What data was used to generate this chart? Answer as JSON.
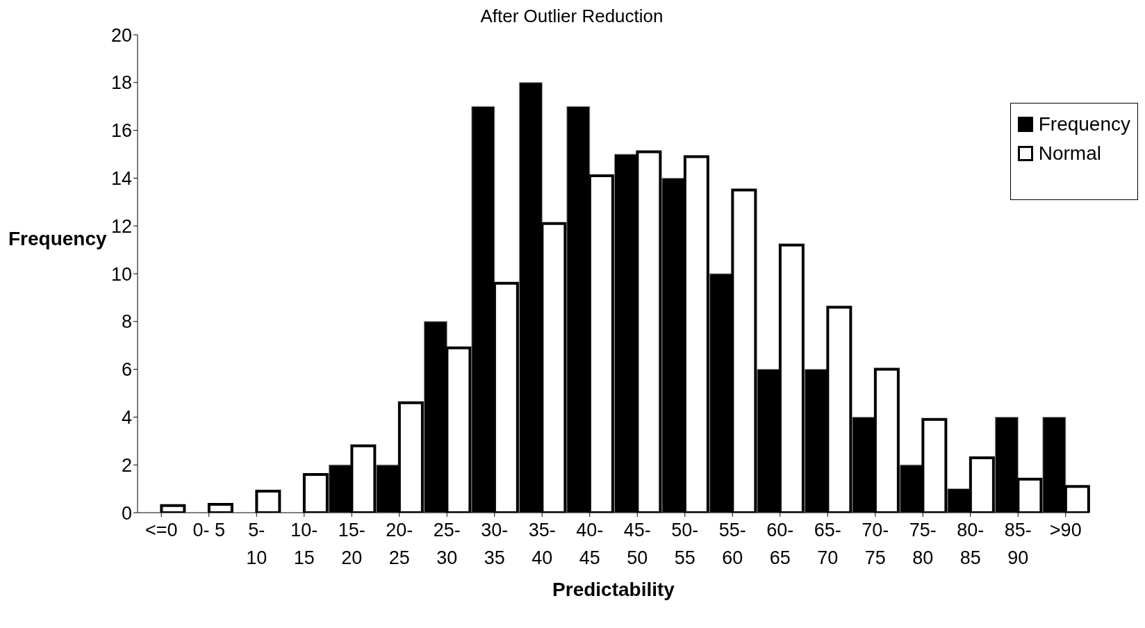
{
  "chart_data": {
    "type": "bar",
    "title": "After Outlier Reduction",
    "xlabel": "Predictability",
    "ylabel": "Frequency",
    "categories": [
      "<=0",
      "0- 5",
      "5- 10",
      "10- 15",
      "15- 20",
      "20- 25",
      "25- 30",
      "30- 35",
      "35- 40",
      "40- 45",
      "45- 50",
      "50- 55",
      "55- 60",
      "60- 65",
      "65- 70",
      "70- 75",
      "75- 80",
      "80- 85",
      "85- 90",
      ">90"
    ],
    "series": [
      {
        "name": "Frequency",
        "color": "#000000",
        "values": [
          0,
          0,
          0,
          0,
          2,
          2,
          8,
          17,
          18,
          17,
          15,
          14,
          10,
          6,
          6,
          4,
          2,
          1,
          4,
          4
        ]
      },
      {
        "name": "Normal",
        "color": "#ffffff",
        "values": [
          0.3,
          0.35,
          0.9,
          1.6,
          2.8,
          4.6,
          6.9,
          9.6,
          12.1,
          14.1,
          15.1,
          14.9,
          13.5,
          11.2,
          8.6,
          6.0,
          3.9,
          2.3,
          1.4,
          1.1
        ]
      }
    ],
    "ylim": [
      0,
      20
    ],
    "yticks": [
      0,
      2,
      4,
      6,
      8,
      10,
      12,
      14,
      16,
      18,
      20
    ],
    "legend": "top right"
  }
}
